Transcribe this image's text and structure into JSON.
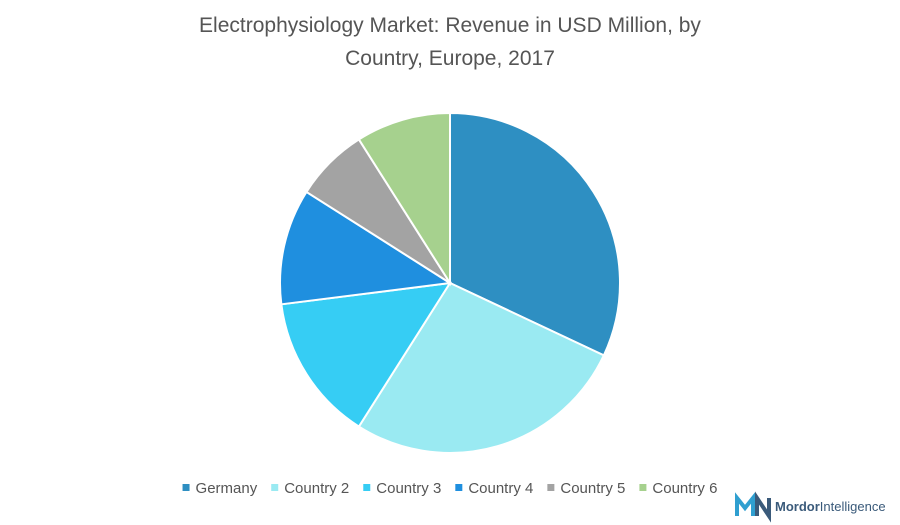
{
  "chart_data": {
    "type": "pie",
    "title": "Electrophysiology Market: Revenue in USD Million, by Country, Europe, 2017",
    "categories": [
      "Germany",
      "Country 2",
      "Country 3",
      "Country 4",
      "Country 5",
      "Country 6"
    ],
    "values": [
      32,
      27,
      14,
      11,
      7,
      9
    ],
    "colors": [
      "#2e8fc2",
      "#9aeaf2",
      "#36cdf4",
      "#1f8fdf",
      "#a3a3a3",
      "#a6d18e"
    ],
    "legend": "bottom"
  },
  "logo": {
    "text_1": "Mordor",
    "text_2": "Intelligence"
  }
}
